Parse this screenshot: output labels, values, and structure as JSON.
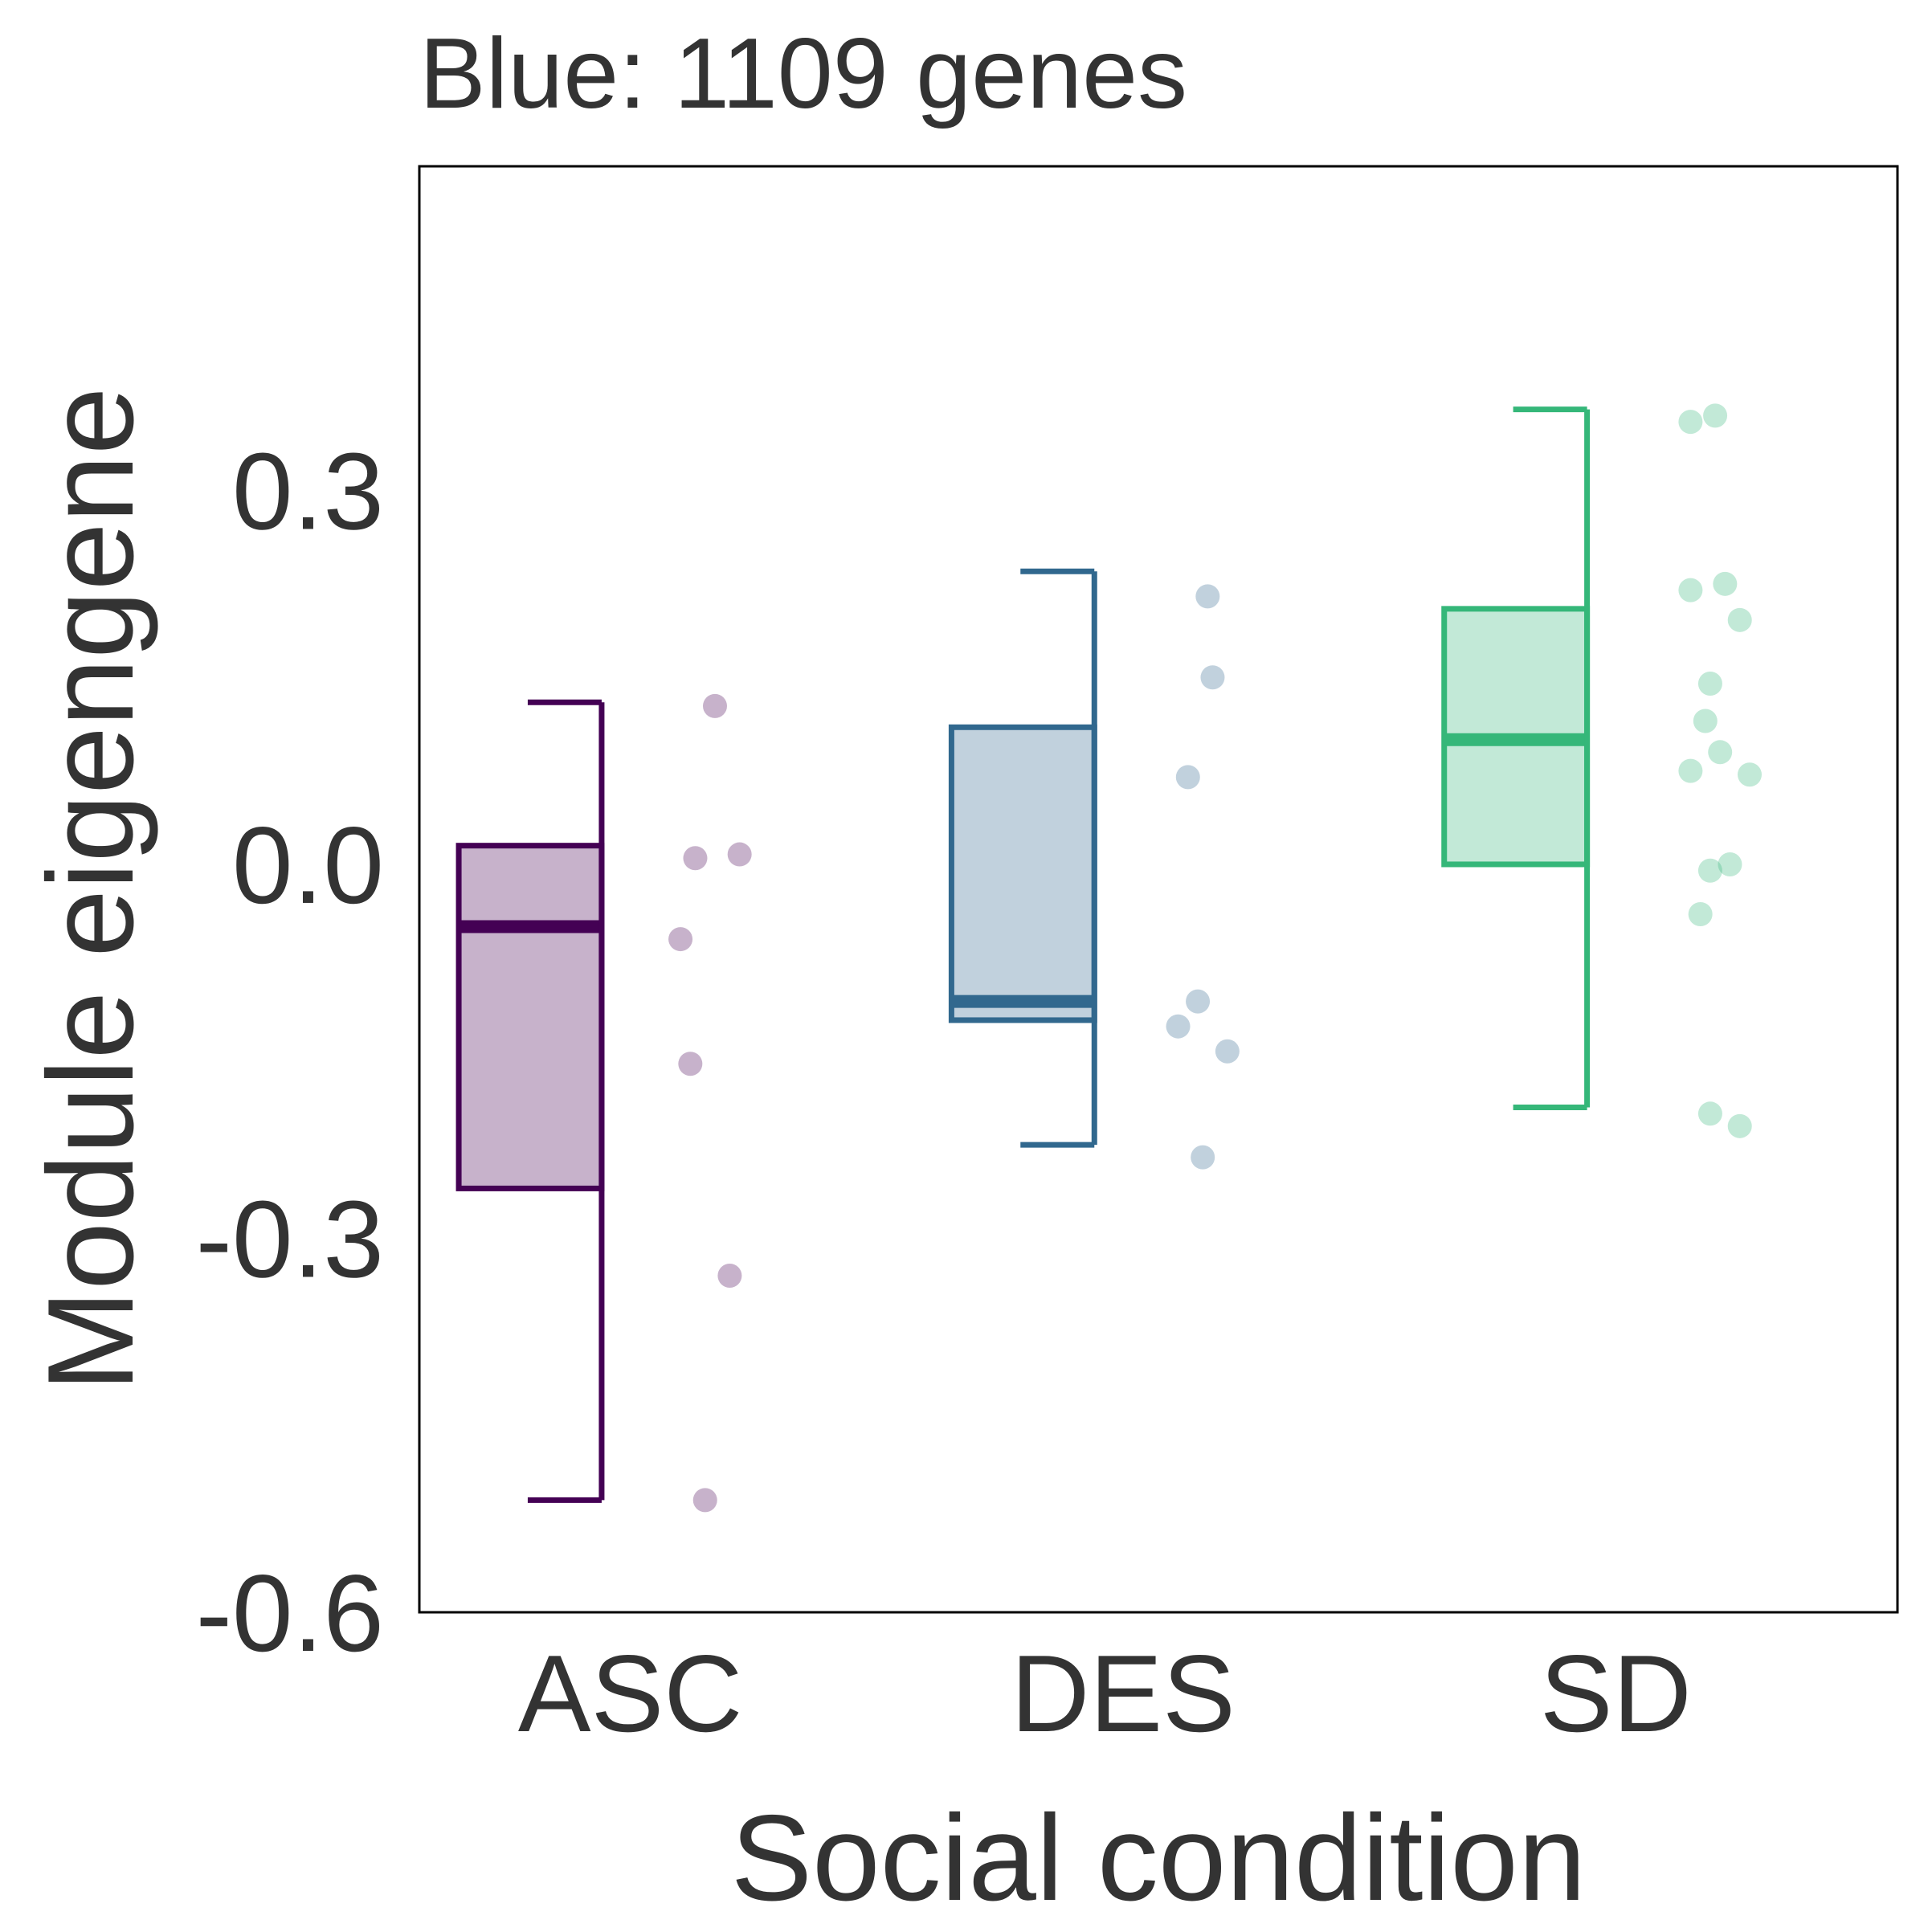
{
  "chart_data": {
    "type": "boxplot",
    "title": "Blue: 1109 genes",
    "xlabel": "Social condition",
    "ylabel": "Module eigengene",
    "ylim": [
      -0.6,
      0.56
    ],
    "yticks": [
      "-0.6",
      "-0.3",
      "0.0",
      "0.3"
    ],
    "ytick_values": [
      -0.6,
      -0.3,
      0.0,
      0.3
    ],
    "categories": [
      "ASC",
      "DES",
      "SD"
    ],
    "colors": {
      "ASC": "#440154",
      "DES": "#31688e",
      "SD": "#35b779"
    },
    "boxes": [
      {
        "category": "ASC",
        "whisker_low": -0.51,
        "q1": -0.26,
        "median": -0.05,
        "q3": 0.015,
        "whisker_high": 0.13
      },
      {
        "category": "DES",
        "whisker_low": -0.225,
        "q1": -0.125,
        "median": -0.11,
        "q3": 0.11,
        "whisker_high": 0.235
      },
      {
        "category": "SD",
        "whisker_low": -0.195,
        "q1": 0.0,
        "median": 0.1,
        "q3": 0.205,
        "whisker_high": 0.365
      }
    ],
    "points": [
      {
        "category": "ASC",
        "values": [
          0.127,
          0.005,
          0.008,
          -0.06,
          -0.16,
          -0.33,
          -0.51
        ],
        "offsets": [
          0.02,
          -0.02,
          0.07,
          -0.05,
          -0.03,
          0.05,
          0.0
        ]
      },
      {
        "category": "DES",
        "values": [
          0.215,
          0.15,
          0.07,
          -0.11,
          -0.13,
          -0.15,
          -0.235
        ],
        "offsets": [
          0.02,
          0.03,
          -0.02,
          0.0,
          -0.04,
          0.06,
          0.01
        ]
      },
      {
        "category": "SD",
        "values": [
          0.36,
          0.355,
          0.225,
          0.22,
          0.196,
          0.145,
          0.115,
          0.09,
          0.075,
          0.072,
          0.0,
          -0.005,
          -0.04,
          -0.2,
          -0.21
        ],
        "offsets": [
          0.05,
          0.0,
          0.07,
          0.0,
          0.1,
          0.04,
          0.03,
          0.06,
          0.0,
          0.12,
          0.08,
          0.04,
          0.02,
          0.04,
          0.1
        ]
      }
    ]
  }
}
